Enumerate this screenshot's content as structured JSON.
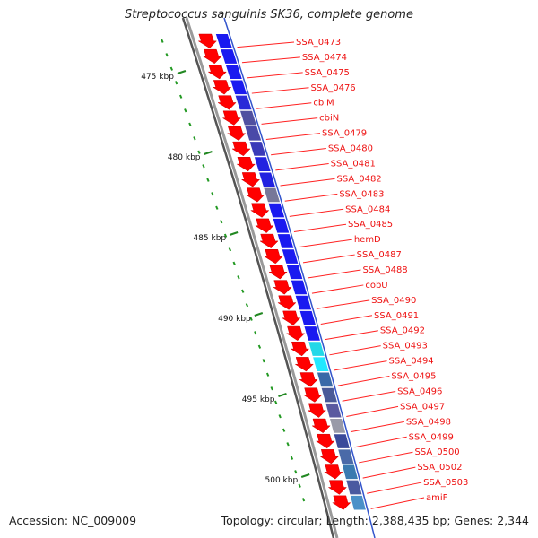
{
  "title": "Streptococcus sanguinis SK36, complete genome",
  "footer": {
    "accession": "Accession: NC_009009",
    "summary": "Topology: circular; Length: 2,388,435 bp; Genes: 2,344"
  },
  "colors": {
    "gene_arrow": "#ff0000",
    "label_text": "#ee1111",
    "label_line": "#ff2222",
    "tick_major": "#228822",
    "tick_minor": "#229922",
    "tick_label": "#111111",
    "backbone": "#9a9a9a",
    "backbone_dark": "#555555"
  },
  "scale_labels": [
    "475 kbp",
    "480 kbp",
    "485 kbp",
    "490 kbp",
    "495 kbp",
    "500 kbp"
  ],
  "gene_labels": [
    "SSA_0473",
    "SSA_0474",
    "SSA_0475",
    "SSA_0476",
    "cbiM",
    "cbiN",
    "SSA_0479",
    "SSA_0480",
    "SSA_0481",
    "SSA_0482",
    "SSA_0483",
    "SSA_0484",
    "SSA_0485",
    "hemD",
    "SSA_0487",
    "SSA_0488",
    "cobU",
    "SSA_0490",
    "SSA_0491",
    "SSA_0492",
    "SSA_0493",
    "SSA_0494",
    "SSA_0495",
    "SSA_0496",
    "SSA_0497",
    "SSA_0498",
    "SSA_0499",
    "SSA_0500",
    "SSA_0502",
    "SSA_0503",
    "amiF"
  ],
  "cog_band_colors": [
    "#1a1af0",
    "#1a1af0",
    "#1a1af0",
    "#1a1af0",
    "#2a2ad8",
    "#5050a0",
    "#4a4aa8",
    "#3a3ab8",
    "#2222e0",
    "#2222e0",
    "#777799",
    "#1a1af0",
    "#1a1af0",
    "#1a1af0",
    "#1a1af0",
    "#1a1af0",
    "#1a1af0",
    "#1a1af0",
    "#1a1af0",
    "#1a1af0",
    "#22d8e8",
    "#22e8ff",
    "#3a6aa8",
    "#4a5a98",
    "#5a5aa0",
    "#999aa8",
    "#3a4a9a",
    "#4a6aa8",
    "#3a7ab0",
    "#4a5aa0",
    "#4a90c8"
  ]
}
